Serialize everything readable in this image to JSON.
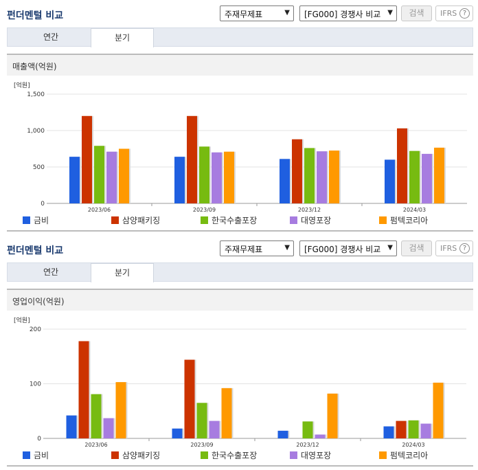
{
  "colors": {
    "s0": "#1f5fe0",
    "s1": "#cc3300",
    "s2": "#77bb11",
    "s3": "#a77ce0",
    "s4": "#ff9900"
  },
  "panels": [
    {
      "title": "펀더멘털 비교",
      "select1": "주재무제표",
      "select2": "[FG000] 경쟁사 비교",
      "search_label": "검색",
      "ifrs_label": "IFRS",
      "help_label": "?",
      "tabs": [
        "연간",
        "분기"
      ],
      "section_title": "매출액(억원)",
      "unit_label": "[억원]"
    },
    {
      "title": "펀더멘털 비교",
      "select1": "주재무제표",
      "select2": "[FG000] 경쟁사 비교",
      "search_label": "검색",
      "ifrs_label": "IFRS",
      "help_label": "?",
      "tabs": [
        "연간",
        "분기"
      ],
      "section_title": "영업이익(억원)",
      "unit_label": "[억원]"
    }
  ],
  "chart_data": [
    {
      "type": "bar",
      "title": "매출액(억원)",
      "ylabel": "[억원]",
      "categories": [
        "2023/06",
        "2023/09",
        "2023/12",
        "2024/03"
      ],
      "ylim": [
        0,
        1500
      ],
      "yticks": [
        0,
        500,
        1000,
        1500
      ],
      "ytick_labels": [
        "0",
        "500",
        "1,000",
        "1,500"
      ],
      "series": [
        {
          "name": "금비",
          "values": [
            640,
            640,
            610,
            600
          ]
        },
        {
          "name": "삼양패키징",
          "values": [
            1200,
            1200,
            880,
            1030
          ]
        },
        {
          "name": "한국수출포장",
          "values": [
            790,
            780,
            760,
            720
          ]
        },
        {
          "name": "대영포장",
          "values": [
            710,
            700,
            715,
            680
          ]
        },
        {
          "name": "펌텍코리아",
          "values": [
            750,
            710,
            725,
            765
          ]
        }
      ],
      "legend_position": "bottom"
    },
    {
      "type": "bar",
      "title": "영업이익(억원)",
      "ylabel": "[억원]",
      "categories": [
        "2023/06",
        "2023/09",
        "2023/12",
        "2024/03"
      ],
      "ylim": [
        0,
        200
      ],
      "yticks": [
        0,
        100,
        200
      ],
      "ytick_labels": [
        "0",
        "100",
        "200"
      ],
      "series": [
        {
          "name": "금비",
          "values": [
            42,
            18,
            14,
            22
          ]
        },
        {
          "name": "삼양패키징",
          "values": [
            178,
            144,
            0,
            32
          ]
        },
        {
          "name": "한국수출포장",
          "values": [
            81,
            65,
            31,
            33
          ]
        },
        {
          "name": "대영포장",
          "values": [
            37,
            32,
            7,
            27
          ]
        },
        {
          "name": "펌텍코리아",
          "values": [
            103,
            92,
            82,
            102
          ]
        }
      ],
      "legend_position": "bottom"
    }
  ]
}
